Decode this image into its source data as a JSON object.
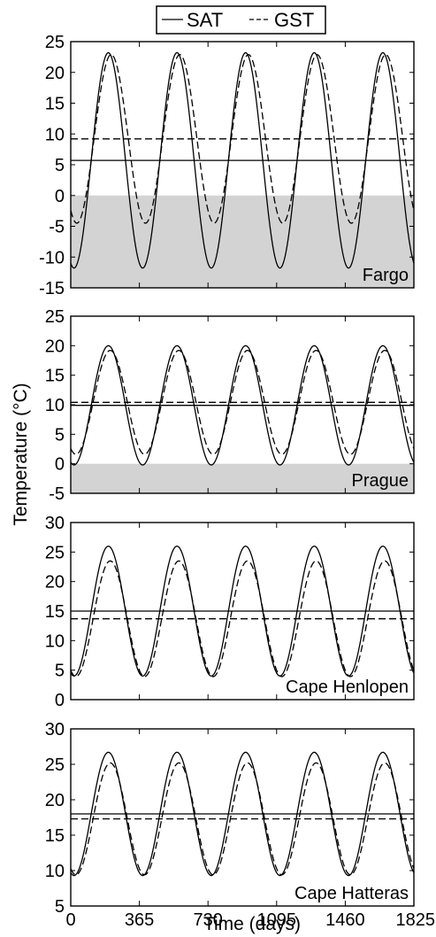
{
  "legend": {
    "items": [
      {
        "label": "SAT",
        "style": "solid"
      },
      {
        "label": "GST",
        "style": "dashed"
      }
    ],
    "placement": "top-center"
  },
  "colors": {
    "line": "#000000",
    "freeze_band": "#d3d3d3",
    "background": "#ffffff"
  },
  "chart_data": [
    {
      "type": "line",
      "label": "Fargo",
      "ylim": [
        -15,
        25
      ],
      "yticks": [
        -15,
        -10,
        -5,
        0,
        5,
        10,
        15,
        20,
        25
      ],
      "xlim": [
        0,
        1825
      ],
      "shaded_below": 0,
      "series": [
        {
          "name": "SAT",
          "style": "solid",
          "mean": 5.7,
          "amplitude": 17.5,
          "peak_day": 200
        },
        {
          "name": "GST",
          "style": "dashed",
          "mean": 9.2,
          "amplitude": 13.7,
          "peak_day": 215
        }
      ],
      "mean_lines": [
        {
          "series": "SAT",
          "value": 5.7
        },
        {
          "series": "GST",
          "value": 9.2
        }
      ]
    },
    {
      "type": "line",
      "label": "Prague",
      "ylim": [
        -5,
        25
      ],
      "yticks": [
        -5,
        0,
        5,
        10,
        15,
        20,
        25
      ],
      "xlim": [
        0,
        1825
      ],
      "shaded_below": 0,
      "series": [
        {
          "name": "SAT",
          "style": "solid",
          "mean": 9.9,
          "amplitude": 10.1,
          "peak_day": 200
        },
        {
          "name": "GST",
          "style": "dashed",
          "mean": 10.4,
          "amplitude": 8.8,
          "peak_day": 210
        }
      ],
      "mean_lines": [
        {
          "series": "SAT",
          "value": 9.9
        },
        {
          "series": "GST",
          "value": 10.4
        }
      ]
    },
    {
      "type": "line",
      "label": "Cape Henlopen",
      "ylim": [
        0,
        30
      ],
      "yticks": [
        0,
        5,
        10,
        15,
        20,
        25,
        30
      ],
      "xlim": [
        0,
        1825
      ],
      "series": [
        {
          "name": "SAT",
          "style": "solid",
          "mean": 15.0,
          "amplitude": 11.0,
          "peak_day": 200
        },
        {
          "name": "GST",
          "style": "dashed",
          "mean": 13.7,
          "amplitude": 9.8,
          "peak_day": 210
        }
      ],
      "mean_lines": [
        {
          "series": "SAT",
          "value": 15.0
        },
        {
          "series": "GST",
          "value": 13.7
        }
      ]
    },
    {
      "type": "line",
      "label": "Cape Hatteras",
      "ylim": [
        5,
        30
      ],
      "yticks": [
        5,
        10,
        15,
        20,
        25,
        30
      ],
      "xlim": [
        0,
        1825
      ],
      "xticks": [
        0,
        365,
        730,
        1095,
        1460,
        1825
      ],
      "series": [
        {
          "name": "SAT",
          "style": "solid",
          "mean": 18.0,
          "amplitude": 8.7,
          "peak_day": 200
        },
        {
          "name": "GST",
          "style": "dashed",
          "mean": 17.3,
          "amplitude": 7.9,
          "peak_day": 210
        }
      ],
      "mean_lines": [
        {
          "series": "SAT",
          "value": 18.0
        },
        {
          "series": "GST",
          "value": 17.3
        }
      ]
    }
  ],
  "axes": {
    "ylabel": "Temperature (°C)",
    "xlabel": "Time (days)"
  }
}
